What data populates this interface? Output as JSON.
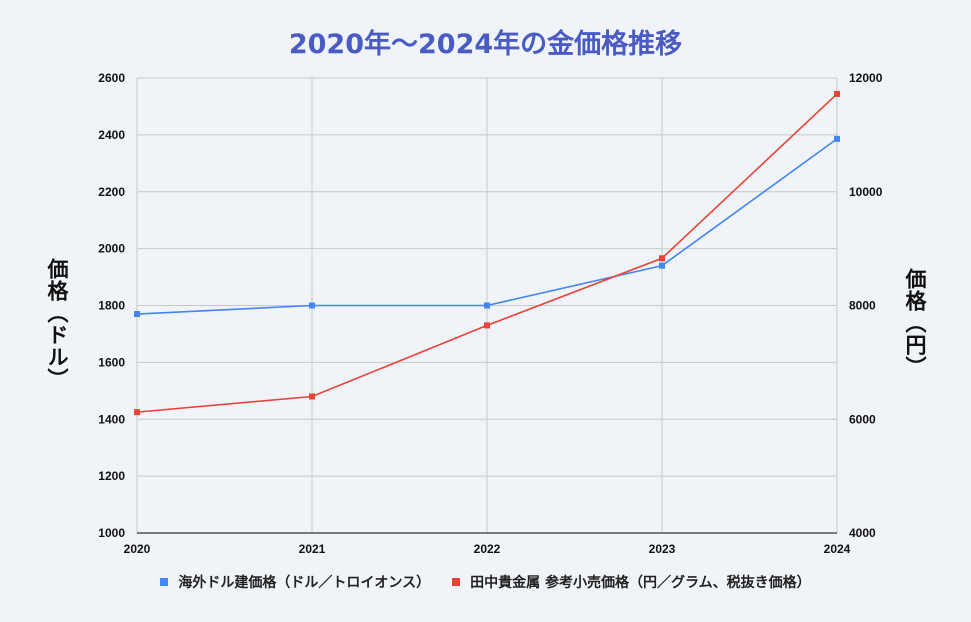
{
  "chart_data": {
    "type": "line",
    "title": "2020年～2024年の金価格推移",
    "xlabel": "",
    "ylabel": "価格（ドル）",
    "ylabel_right": "価格（円）",
    "categories": [
      "2020",
      "2021",
      "2022",
      "2023",
      "2024"
    ],
    "ylim": [
      1000,
      2600
    ],
    "ylim_right": [
      4000,
      12000
    ],
    "yticks": [
      1000,
      1200,
      1400,
      1600,
      1800,
      2000,
      2200,
      2400,
      2600
    ],
    "yticks_right": [
      4000,
      6000,
      8000,
      10000,
      12000
    ],
    "grid": true,
    "legend_position": "bottom",
    "series": [
      {
        "name": "海外ドル建価格（ドル／トロイオンス）",
        "axis": "left",
        "color": "#4285f4",
        "values": [
          1770,
          1800,
          1800,
          1940,
          2386
        ]
      },
      {
        "name": "田中貴金属 参考小売価格（円／グラム、税抜き価格）",
        "axis": "right",
        "color": "#ea4335",
        "values": [
          6125,
          6400,
          7650,
          8830,
          11720
        ]
      }
    ]
  }
}
